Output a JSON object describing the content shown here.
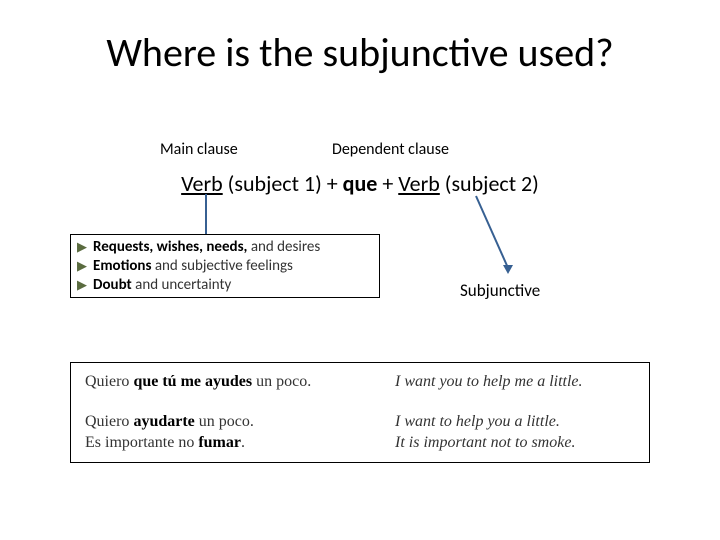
{
  "title": "Where is the subjunctive used?",
  "labels": {
    "main_clause": "Main clause",
    "dependent_clause": "Dependent clause",
    "subjunctive": "Subjunctive"
  },
  "formula": {
    "verb_s1_pre": "Verb",
    "subject1": " (subject 1)",
    "plus1": " + ",
    "que": "que",
    "plus2": " + ",
    "verb_s2_pre": "Verb",
    "subject2": " (subject 2)"
  },
  "categories": [
    {
      "bold": "Requests, wishes, needs,",
      "rest": " and desires"
    },
    {
      "bold": "Emotions",
      "rest": " and subjective feelings"
    },
    {
      "bold": "Doubt",
      "rest": " and uncertainty"
    }
  ],
  "examples": [
    {
      "es_pre": "Quiero ",
      "es_bold": "que tú me ayudes",
      "es_post": " un poco.",
      "en": "I want you to help me a little."
    },
    {
      "es_pre": "Quiero ",
      "es_bold": "ayudarte",
      "es_post": " un poco.",
      "en": "I want to help you a little."
    },
    {
      "es_pre": "Es importante no ",
      "es_bold": "fumar",
      "es_post": ".",
      "en": "It is important not to smoke."
    }
  ],
  "colors": {
    "arrow": "#376092",
    "triangle": "#5a6b3f",
    "text": "#000000",
    "body": "#333333",
    "bg": "#ffffff"
  }
}
